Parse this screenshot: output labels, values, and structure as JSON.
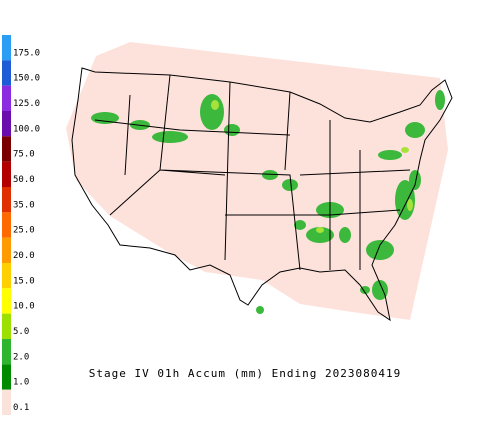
{
  "legend": {
    "labels": [
      "175.0",
      "150.0",
      "125.0",
      "100.0",
      "75.0",
      "50.0",
      "35.0",
      "25.0",
      "20.0",
      "15.0",
      "10.0",
      "5.0",
      "2.0",
      "1.0",
      "0.1"
    ]
  },
  "title": "Stage IV 01h Accum (mm) Ending 2023080419"
}
